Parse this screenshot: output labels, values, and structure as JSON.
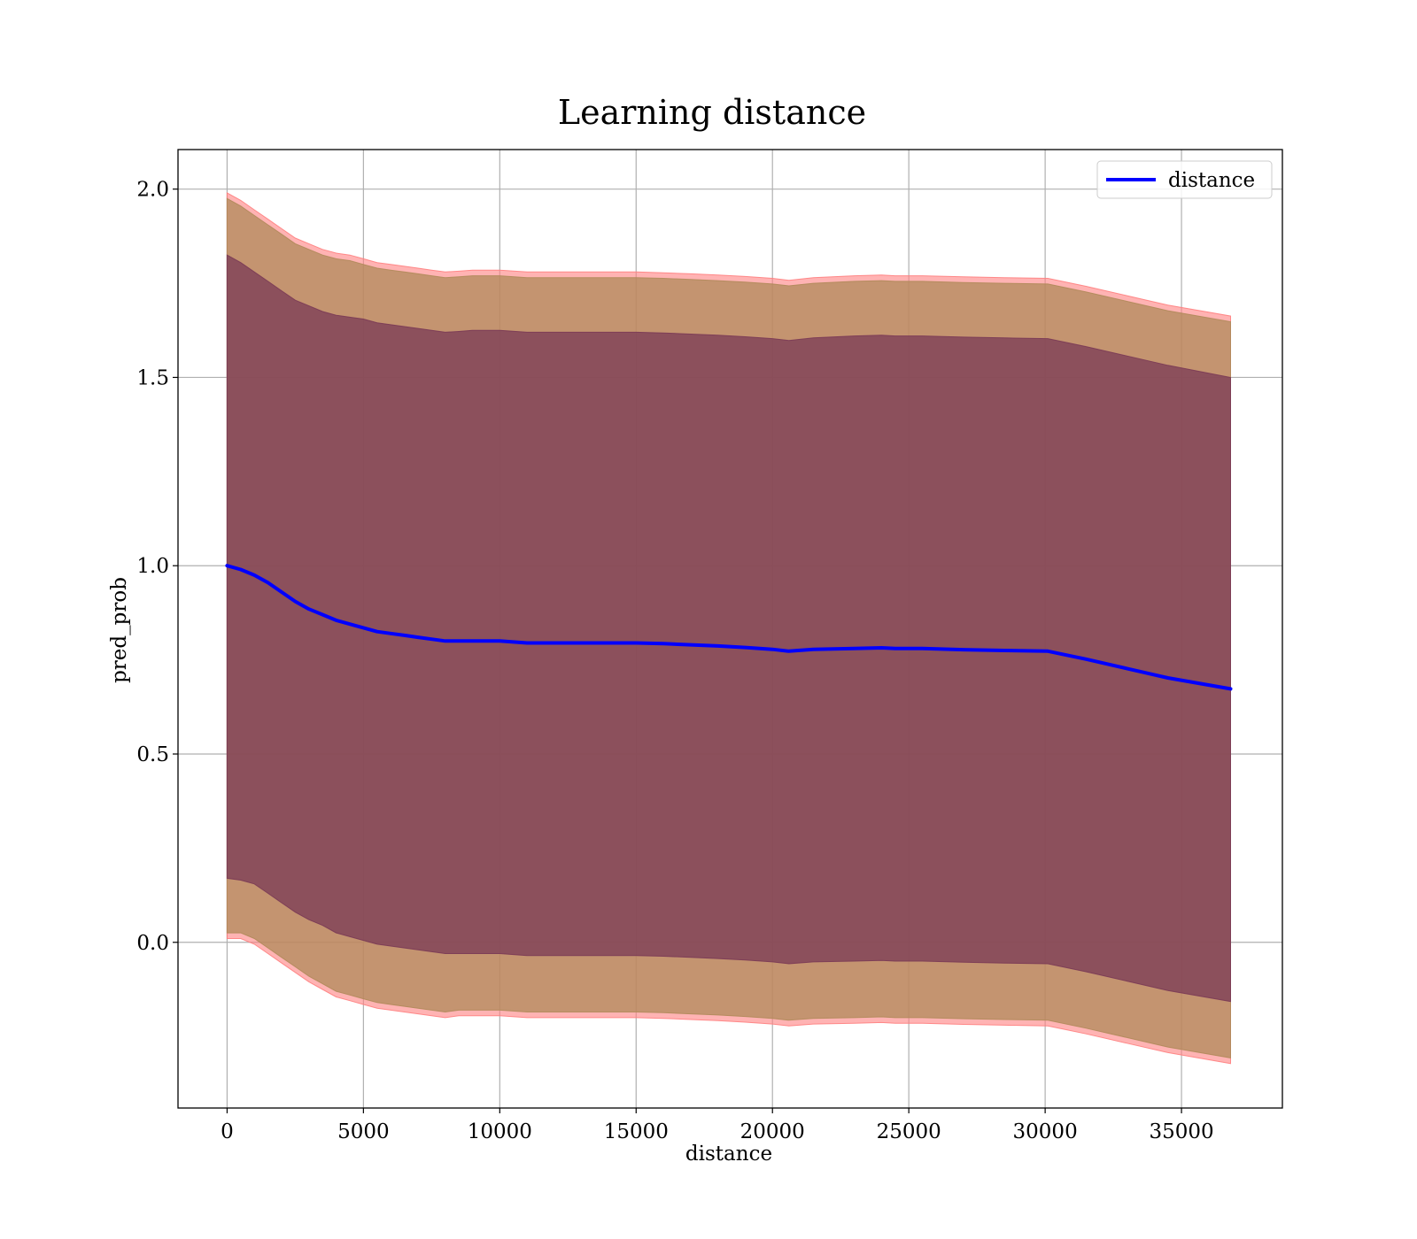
{
  "chart_data": {
    "type": "line",
    "title": "Learning distance",
    "xlabel": "distance",
    "ylabel": "pred_prob",
    "xlim": [
      -1800,
      38700
    ],
    "ylim": [
      -0.44,
      2.105
    ],
    "xticks": [
      0,
      5000,
      10000,
      15000,
      20000,
      25000,
      30000,
      35000
    ],
    "yticks": [
      0.0,
      0.5,
      1.0,
      1.5,
      2.0
    ],
    "xtick_labels": [
      "0",
      "5000",
      "10000",
      "15000",
      "20000",
      "25000",
      "30000",
      "35000"
    ],
    "ytick_labels": [
      "0.0",
      "0.5",
      "1.0",
      "1.5",
      "2.0"
    ],
    "grid": true,
    "legend": {
      "position": "top-right",
      "entries": [
        "distance"
      ]
    },
    "colors": {
      "line": "#0000ff",
      "outer_band": "#ff8080",
      "middle_band": "#b08a5a",
      "inner_band": "#7a3a55",
      "grid": "#b0b0b0"
    },
    "x": [
      0,
      500,
      1000,
      1500,
      2000,
      2500,
      3000,
      3500,
      4000,
      4500,
      5000,
      5500,
      6000,
      6500,
      7000,
      7500,
      8000,
      8500,
      9000,
      9500,
      10000,
      11000,
      12000,
      13000,
      14000,
      15000,
      16000,
      17000,
      18000,
      19000,
      20000,
      20600,
      21500,
      23000,
      24000,
      24500,
      25500,
      27000,
      28500,
      30100,
      31500,
      33000,
      34500,
      36800
    ],
    "series": [
      {
        "name": "distance",
        "values": [
          1.0,
          0.99,
          0.975,
          0.955,
          0.93,
          0.905,
          0.885,
          0.87,
          0.855,
          0.845,
          0.835,
          0.825,
          0.82,
          0.815,
          0.81,
          0.805,
          0.8,
          0.8,
          0.8,
          0.8,
          0.8,
          0.795,
          0.795,
          0.795,
          0.795,
          0.795,
          0.793,
          0.79,
          0.787,
          0.783,
          0.778,
          0.773,
          0.778,
          0.78,
          0.782,
          0.78,
          0.78,
          0.777,
          0.775,
          0.773,
          0.752,
          0.727,
          0.702,
          0.673
        ]
      }
    ],
    "bands": [
      {
        "upper": [
          1.99,
          1.97,
          1.945,
          1.92,
          1.895,
          1.87,
          1.855,
          1.84,
          1.83,
          1.825,
          1.815,
          1.805,
          1.8,
          1.795,
          1.79,
          1.785,
          1.78,
          1.782,
          1.785,
          1.785,
          1.785,
          1.78,
          1.78,
          1.78,
          1.78,
          1.78,
          1.778,
          1.775,
          1.772,
          1.768,
          1.763,
          1.758,
          1.765,
          1.77,
          1.772,
          1.77,
          1.77,
          1.767,
          1.765,
          1.763,
          1.742,
          1.717,
          1.692,
          1.663
        ],
        "lower": [
          0.01,
          0.01,
          -0.005,
          -0.03,
          -0.055,
          -0.08,
          -0.105,
          -0.125,
          -0.145,
          -0.155,
          -0.165,
          -0.175,
          -0.18,
          -0.185,
          -0.19,
          -0.195,
          -0.2,
          -0.195,
          -0.195,
          -0.195,
          -0.195,
          -0.2,
          -0.2,
          -0.2,
          -0.2,
          -0.2,
          -0.202,
          -0.205,
          -0.208,
          -0.212,
          -0.217,
          -0.222,
          -0.217,
          -0.215,
          -0.213,
          -0.215,
          -0.215,
          -0.218,
          -0.22,
          -0.222,
          -0.243,
          -0.268,
          -0.293,
          -0.322
        ]
      },
      {
        "upper": [
          1.975,
          1.955,
          1.93,
          1.905,
          1.88,
          1.855,
          1.84,
          1.825,
          1.815,
          1.81,
          1.8,
          1.79,
          1.785,
          1.78,
          1.775,
          1.77,
          1.765,
          1.767,
          1.77,
          1.77,
          1.77,
          1.765,
          1.765,
          1.765,
          1.765,
          1.765,
          1.763,
          1.76,
          1.757,
          1.753,
          1.748,
          1.743,
          1.75,
          1.755,
          1.757,
          1.755,
          1.755,
          1.752,
          1.75,
          1.748,
          1.727,
          1.702,
          1.677,
          1.648
        ],
        "lower": [
          0.025,
          0.025,
          0.01,
          -0.015,
          -0.04,
          -0.065,
          -0.09,
          -0.11,
          -0.13,
          -0.14,
          -0.15,
          -0.16,
          -0.165,
          -0.17,
          -0.175,
          -0.18,
          -0.185,
          -0.18,
          -0.18,
          -0.18,
          -0.18,
          -0.185,
          -0.185,
          -0.185,
          -0.185,
          -0.185,
          -0.187,
          -0.19,
          -0.193,
          -0.197,
          -0.202,
          -0.207,
          -0.202,
          -0.2,
          -0.198,
          -0.2,
          -0.2,
          -0.203,
          -0.205,
          -0.207,
          -0.228,
          -0.253,
          -0.278,
          -0.307
        ]
      },
      {
        "upper": [
          1.825,
          1.805,
          1.78,
          1.755,
          1.73,
          1.705,
          1.69,
          1.675,
          1.665,
          1.66,
          1.655,
          1.645,
          1.64,
          1.635,
          1.63,
          1.625,
          1.62,
          1.622,
          1.625,
          1.625,
          1.625,
          1.62,
          1.62,
          1.62,
          1.62,
          1.62,
          1.618,
          1.615,
          1.612,
          1.608,
          1.603,
          1.598,
          1.605,
          1.61,
          1.612,
          1.61,
          1.61,
          1.607,
          1.605,
          1.603,
          1.582,
          1.557,
          1.532,
          1.5
        ],
        "lower": [
          0.17,
          0.165,
          0.155,
          0.13,
          0.105,
          0.08,
          0.06,
          0.045,
          0.025,
          0.015,
          0.005,
          -0.005,
          -0.01,
          -0.015,
          -0.02,
          -0.025,
          -0.03,
          -0.03,
          -0.03,
          -0.03,
          -0.03,
          -0.035,
          -0.035,
          -0.035,
          -0.035,
          -0.035,
          -0.037,
          -0.04,
          -0.043,
          -0.047,
          -0.052,
          -0.057,
          -0.052,
          -0.05,
          -0.048,
          -0.05,
          -0.05,
          -0.053,
          -0.055,
          -0.057,
          -0.078,
          -0.103,
          -0.128,
          -0.157
        ]
      }
    ]
  }
}
